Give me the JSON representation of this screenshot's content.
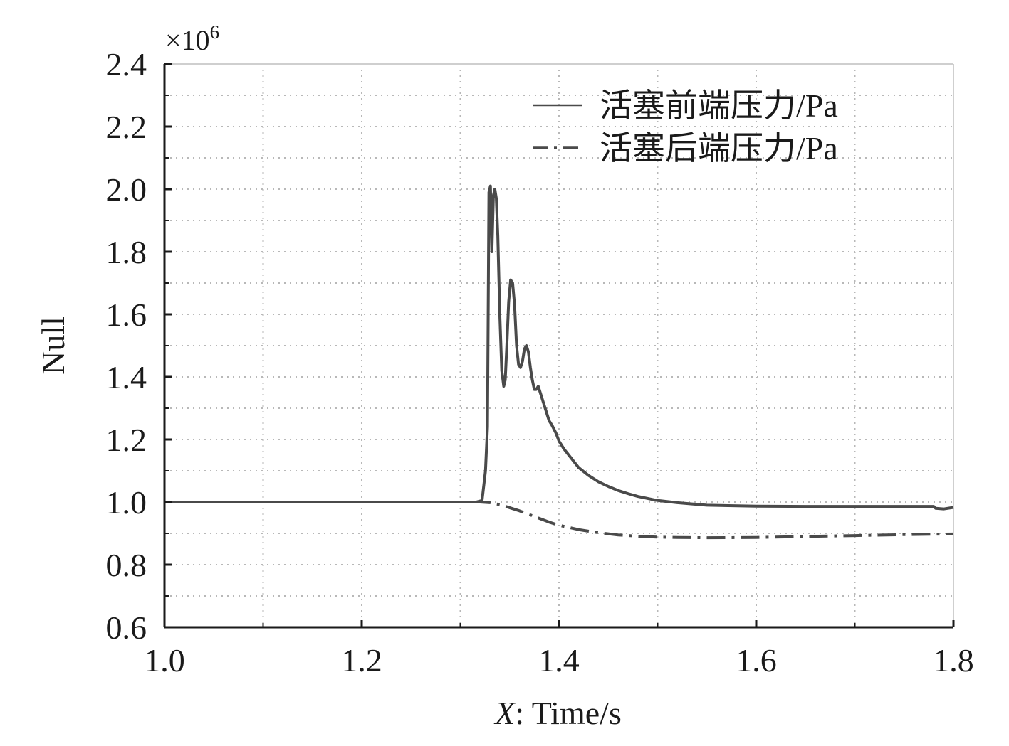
{
  "chart_data": {
    "type": "line",
    "title": "",
    "xlabel_var": "X",
    "xlabel_rest": ": Time/s",
    "ylabel": "Null",
    "y_multiplier": {
      "base": "×10",
      "exponent": "6"
    },
    "xlim": [
      1.0,
      1.8
    ],
    "ylim": [
      0.6,
      2.4
    ],
    "x_ticks": [
      "1.0",
      "1.2",
      "1.4",
      "1.6",
      "1.8"
    ],
    "y_ticks": [
      "0.6",
      "0.8",
      "1.0",
      "1.2",
      "1.4",
      "1.6",
      "1.8",
      "2.0",
      "2.2",
      "2.4"
    ],
    "grid": true,
    "legend_position": "top-right",
    "colors": {
      "series": "#4a4a4a",
      "grid": "#b8b8b8",
      "axis": "#1a1a1a"
    },
    "series": [
      {
        "name": "活塞前端压力/Pa",
        "style": "solid",
        "x": [
          1.0,
          1.3,
          1.316,
          1.322,
          1.3255,
          1.3275,
          1.329,
          1.3305,
          1.332,
          1.3335,
          1.335,
          1.3365,
          1.338,
          1.34,
          1.342,
          1.344,
          1.3455,
          1.347,
          1.349,
          1.351,
          1.353,
          1.355,
          1.357,
          1.359,
          1.361,
          1.363,
          1.365,
          1.367,
          1.369,
          1.371,
          1.373,
          1.375,
          1.377,
          1.379,
          1.381,
          1.384,
          1.387,
          1.39,
          1.393,
          1.397,
          1.4,
          1.405,
          1.41,
          1.415,
          1.42,
          1.43,
          1.44,
          1.45,
          1.46,
          1.47,
          1.48,
          1.5,
          1.52,
          1.55,
          1.6,
          1.65,
          1.7,
          1.75,
          1.78,
          1.782,
          1.79,
          1.8
        ],
        "y": [
          1.0,
          1.0,
          1.0,
          1.005,
          1.1,
          1.24,
          1.99,
          2.01,
          1.8,
          1.98,
          2.0,
          1.97,
          1.85,
          1.6,
          1.42,
          1.37,
          1.39,
          1.49,
          1.64,
          1.71,
          1.7,
          1.63,
          1.5,
          1.44,
          1.43,
          1.45,
          1.49,
          1.5,
          1.48,
          1.43,
          1.39,
          1.36,
          1.36,
          1.37,
          1.35,
          1.32,
          1.29,
          1.26,
          1.245,
          1.22,
          1.195,
          1.17,
          1.15,
          1.13,
          1.11,
          1.085,
          1.065,
          1.05,
          1.037,
          1.027,
          1.018,
          1.005,
          0.998,
          0.99,
          0.987,
          0.986,
          0.986,
          0.986,
          0.986,
          0.98,
          0.978,
          0.983
        ]
      },
      {
        "name": "活塞后端压力/Pa",
        "style": "dashdot",
        "x": [
          1.0,
          1.3,
          1.32,
          1.33,
          1.34,
          1.35,
          1.36,
          1.37,
          1.38,
          1.39,
          1.4,
          1.42,
          1.44,
          1.46,
          1.48,
          1.5,
          1.52,
          1.55,
          1.6,
          1.65,
          1.7,
          1.75,
          1.8
        ],
        "y": [
          1.0,
          1.0,
          1.0,
          0.998,
          0.992,
          0.982,
          0.972,
          0.96,
          0.948,
          0.936,
          0.926,
          0.912,
          0.902,
          0.895,
          0.891,
          0.888,
          0.887,
          0.886,
          0.887,
          0.89,
          0.893,
          0.896,
          0.898
        ]
      }
    ]
  }
}
